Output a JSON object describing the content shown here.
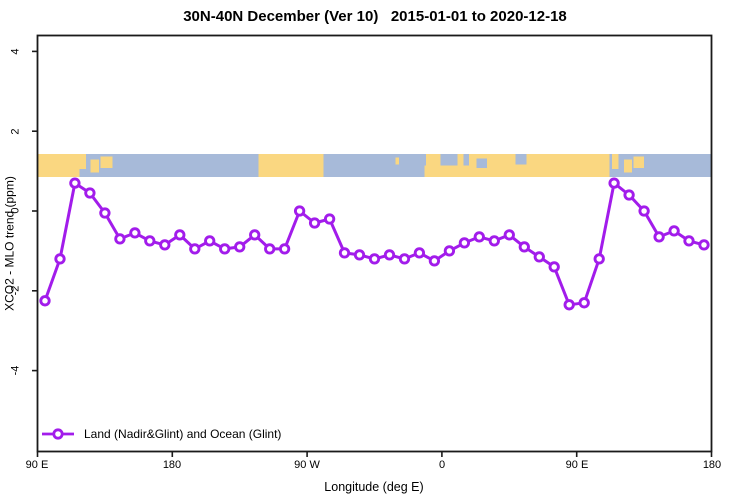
{
  "title": "30N-40N December (Ver 10)   2015-01-01 to 2020-12-18",
  "legend": {
    "label": "Land (Nadir&Glint) and Ocean (Glint)",
    "position": "bottom-left"
  },
  "colors": {
    "series": "#a21ceb",
    "marker_fill": "#ffffff",
    "sea": "#a7bad9",
    "land": "#fad781",
    "axis": "#1a1a1a"
  },
  "chart_data": {
    "type": "line",
    "title": "30N-40N December (Ver 10)   2015-01-01 to 2020-12-18",
    "xlabel": "Longitude (deg E)",
    "ylabel": "XCO2 - MLO trend (ppm)",
    "xlim": [
      90,
      540
    ],
    "ylim": [
      -6.0,
      4.4
    ],
    "grid": false,
    "x_ticks": [
      {
        "lon": 90,
        "label": "90 E"
      },
      {
        "lon": 180,
        "label": "180"
      },
      {
        "lon": 270,
        "label": "90 W"
      },
      {
        "lon": 360,
        "label": "0"
      },
      {
        "lon": 450,
        "label": "90 E"
      },
      {
        "lon": 540,
        "label": "180"
      }
    ],
    "y_ticks": [
      {
        "value": 4,
        "label": "4"
      },
      {
        "value": 2,
        "label": "2"
      },
      {
        "value": 0,
        "label": "0"
      },
      {
        "value": -2,
        "label": "-2"
      },
      {
        "value": -4,
        "label": "-4"
      }
    ],
    "series": [
      {
        "name": "Land (Nadir&Glint) and Ocean (Glint)",
        "color": "#a21ceb",
        "marker": "open-circle",
        "x": [
          95,
          105,
          115,
          125,
          135,
          145,
          155,
          165,
          175,
          185,
          195,
          205,
          215,
          225,
          235,
          245,
          255,
          265,
          275,
          285,
          295,
          305,
          315,
          325,
          335,
          345,
          355,
          365,
          375,
          385,
          395,
          405,
          415,
          425,
          435,
          445,
          455,
          465,
          475,
          485,
          495,
          505,
          515,
          525,
          535
        ],
        "y": [
          -2.25,
          -1.2,
          0.7,
          0.45,
          -0.05,
          -0.7,
          -0.55,
          -0.75,
          -0.85,
          -0.6,
          -0.95,
          -0.75,
          -0.95,
          -0.9,
          -0.6,
          -0.95,
          -0.95,
          0.0,
          -0.3,
          -0.2,
          -1.05,
          -1.1,
          -1.2,
          -1.1,
          -1.2,
          -1.05,
          -1.25,
          -1.0,
          -0.8,
          -0.65,
          -0.75,
          -0.6,
          -0.9,
          -1.15,
          -1.4,
          -2.35,
          -2.3,
          -1.2,
          0.7,
          0.4,
          0.0,
          -0.65,
          -0.5,
          -0.75,
          -0.85
        ]
      }
    ],
    "map_band": {
      "description": "land-ocean strip for 30N-40N latitude band",
      "y_range": [
        0.85,
        1.43
      ],
      "sea_color": "#a7bad9",
      "land_color": "#fad781",
      "land_segments": [
        {
          "x0": 90,
          "x1": 118,
          "t": 0,
          "b": 1
        },
        {
          "x0": 118,
          "x1": 122.5,
          "t": 0,
          "b": 0.65
        },
        {
          "x0": 125.5,
          "x1": 131,
          "t": 0.25,
          "b": 0.8
        },
        {
          "x0": 132,
          "x1": 140,
          "t": 0.1,
          "b": 0.6
        },
        {
          "x0": 237.5,
          "x1": 281,
          "t": 0,
          "b": 1
        },
        {
          "x0": 329,
          "x1": 331.5,
          "t": 0.15,
          "b": 0.45
        },
        {
          "x0": 348.5,
          "x1": 401,
          "t": 0.5,
          "b": 1
        },
        {
          "x0": 349.5,
          "x1": 359,
          "t": 0,
          "b": 0.5
        },
        {
          "x0": 370.5,
          "x1": 374.5,
          "t": 0,
          "b": 0.55
        },
        {
          "x0": 378,
          "x1": 401,
          "t": 0,
          "b": 0.5
        },
        {
          "x0": 401,
          "x1": 472,
          "t": 0,
          "b": 1
        },
        {
          "x0": 473.5,
          "x1": 478,
          "t": 0,
          "b": 0.65
        },
        {
          "x0": 481.5,
          "x1": 487,
          "t": 0.25,
          "b": 0.8
        },
        {
          "x0": 488,
          "x1": 495,
          "t": 0.1,
          "b": 0.6
        }
      ],
      "sea_overlays": [
        {
          "x0": 361,
          "x1": 369,
          "t": 0,
          "b": 0.45
        },
        {
          "x0": 383,
          "x1": 390,
          "t": 0.2,
          "b": 0.6
        },
        {
          "x0": 409,
          "x1": 416.5,
          "t": 0,
          "b": 0.45
        }
      ]
    }
  }
}
